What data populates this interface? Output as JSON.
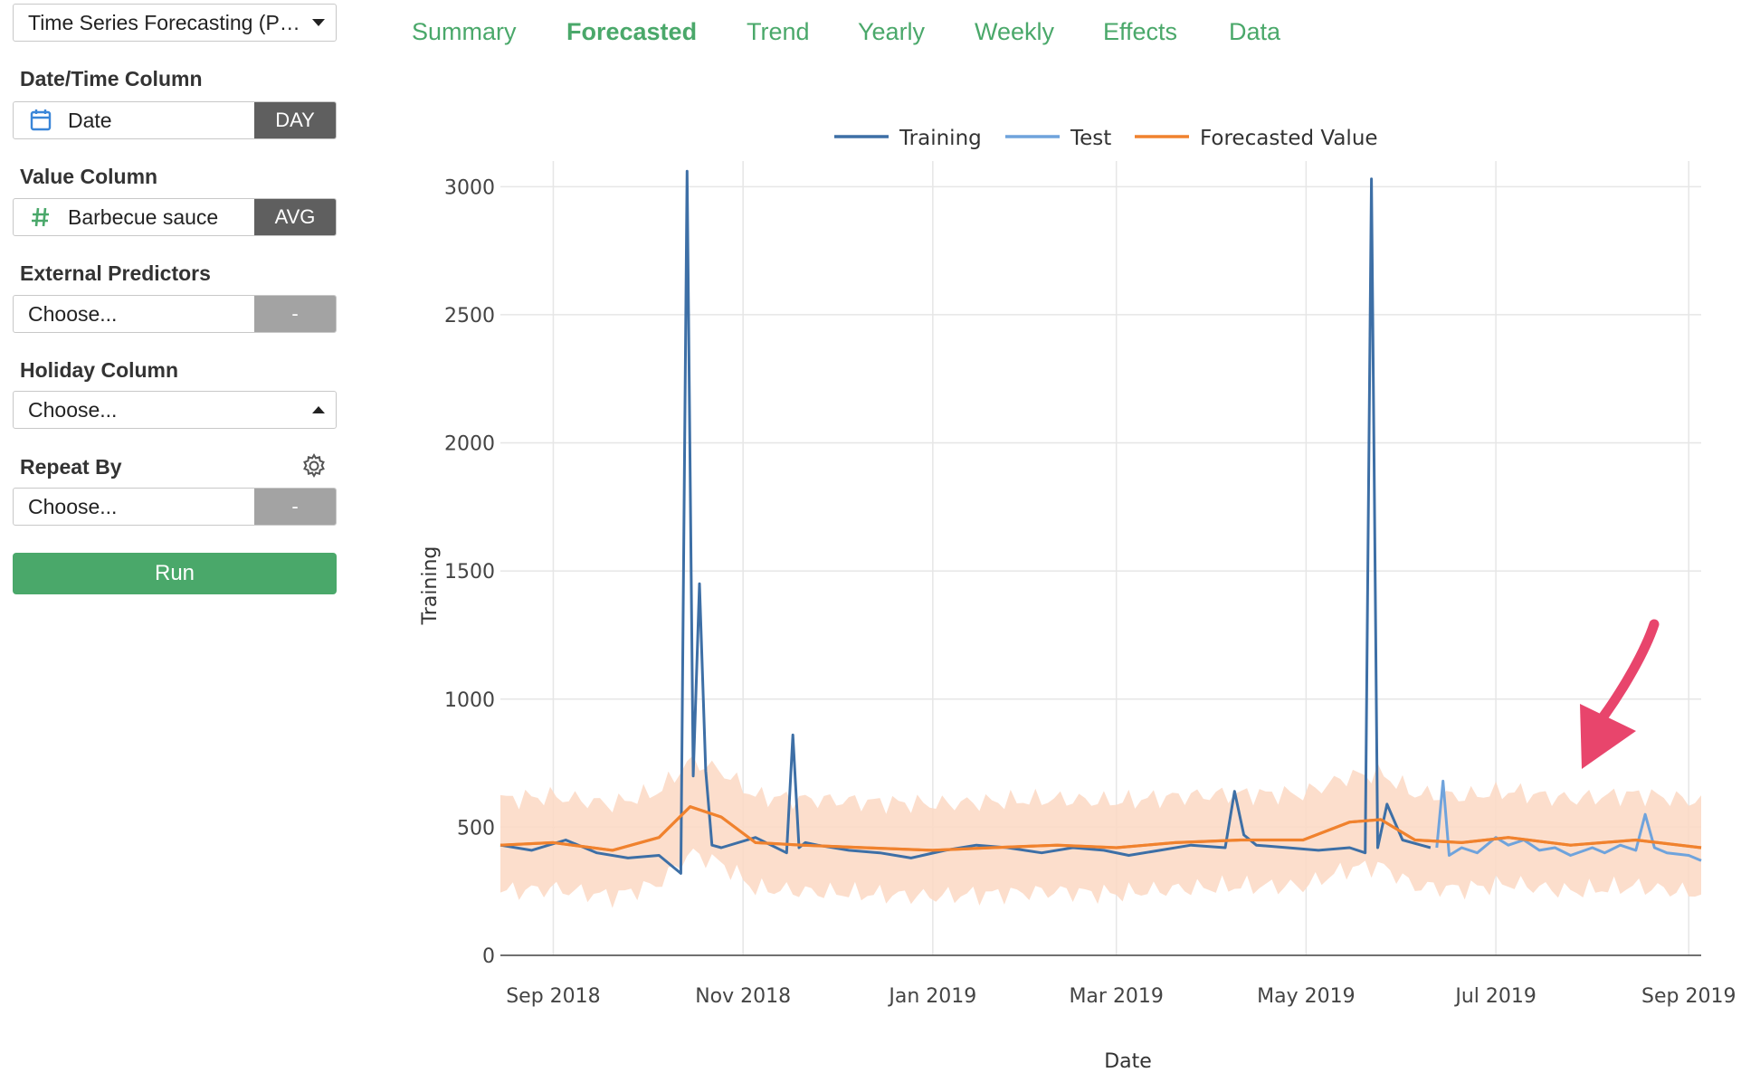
{
  "model_select": {
    "value": "Time Series Forecasting (P…"
  },
  "fields": {
    "datetime": {
      "label": "Date/Time Column",
      "value": "Date",
      "button": "DAY",
      "icon": "calendar-icon"
    },
    "value": {
      "label": "Value Column",
      "value": "Barbecue sauce",
      "button": "AVG",
      "icon": "hash-icon"
    },
    "external": {
      "label": "External Predictors",
      "placeholder": "Choose...",
      "button": "-"
    },
    "holiday": {
      "label": "Holiday Column",
      "placeholder": "Choose..."
    },
    "repeat": {
      "label": "Repeat By",
      "placeholder": "Choose...",
      "button": "-",
      "icon": "gear-icon"
    }
  },
  "run_button": {
    "label": "Run"
  },
  "tabs": [
    {
      "label": "Summary",
      "active": false
    },
    {
      "label": "Forecasted",
      "active": true
    },
    {
      "label": "Trend",
      "active": false
    },
    {
      "label": "Yearly",
      "active": false
    },
    {
      "label": "Weekly",
      "active": false
    },
    {
      "label": "Effects",
      "active": false
    },
    {
      "label": "Data",
      "active": false
    }
  ],
  "colors": {
    "accent": "#4aa86a",
    "training": "#3d6fa6",
    "test": "#6fa3dc",
    "forecast": "#f0822e",
    "band": "#fbd8c3",
    "arrow": "#e8456c"
  },
  "chart_data": {
    "type": "line",
    "xlabel": "Date",
    "ylabel": "Training",
    "ylim": [
      0,
      3100
    ],
    "xlim": [
      "2018-08-15",
      "2019-09-05"
    ],
    "x_ticks": [
      "Sep 2018",
      "Nov 2018",
      "Jan 2019",
      "Mar 2019",
      "May 2019",
      "Jul 2019",
      "Sep 2019"
    ],
    "y_ticks": [
      0,
      500,
      1000,
      1500,
      2000,
      2500,
      3000
    ],
    "legend": [
      "Training",
      "Test",
      "Forecasted Value"
    ],
    "legend_position": "top",
    "grid": true,
    "annotation": "arrow pointing at test period",
    "series": [
      {
        "name": "Training",
        "x": [
          "2018-08-15",
          "2018-08-25",
          "2018-09-05",
          "2018-09-15",
          "2018-09-25",
          "2018-10-05",
          "2018-10-12",
          "2018-10-14",
          "2018-10-16",
          "2018-10-18",
          "2018-10-20",
          "2018-10-22",
          "2018-10-25",
          "2018-11-05",
          "2018-11-15",
          "2018-11-17",
          "2018-11-19",
          "2018-11-21",
          "2018-11-25",
          "2018-12-05",
          "2018-12-15",
          "2018-12-25",
          "2019-01-05",
          "2019-01-15",
          "2019-01-25",
          "2019-02-05",
          "2019-02-15",
          "2019-02-25",
          "2019-03-05",
          "2019-03-15",
          "2019-03-25",
          "2019-04-05",
          "2019-04-08",
          "2019-04-11",
          "2019-04-15",
          "2019-04-25",
          "2019-05-05",
          "2019-05-15",
          "2019-05-20",
          "2019-05-22",
          "2019-05-24",
          "2019-05-27",
          "2019-06-01",
          "2019-06-07",
          "2019-06-10"
        ],
        "y": [
          430,
          410,
          450,
          400,
          380,
          390,
          320,
          3060,
          700,
          1450,
          720,
          430,
          420,
          460,
          400,
          860,
          420,
          440,
          430,
          410,
          400,
          380,
          410,
          430,
          420,
          400,
          420,
          410,
          390,
          410,
          430,
          420,
          640,
          470,
          430,
          420,
          410,
          420,
          400,
          3030,
          420,
          590,
          450,
          430,
          420
        ]
      },
      {
        "name": "Test",
        "x": [
          "2019-06-12",
          "2019-06-14",
          "2019-06-16",
          "2019-06-20",
          "2019-06-25",
          "2019-07-01",
          "2019-07-05",
          "2019-07-10",
          "2019-07-15",
          "2019-07-20",
          "2019-07-25",
          "2019-08-01",
          "2019-08-05",
          "2019-08-10",
          "2019-08-15",
          "2019-08-18",
          "2019-08-21",
          "2019-08-25",
          "2019-09-01",
          "2019-09-05"
        ],
        "y": [
          420,
          680,
          390,
          420,
          400,
          460,
          430,
          450,
          410,
          420,
          390,
          420,
          400,
          430,
          410,
          550,
          420,
          400,
          390,
          370
        ]
      },
      {
        "name": "Forecasted Value",
        "x": [
          "2018-08-15",
          "2018-09-01",
          "2018-09-20",
          "2018-10-05",
          "2018-10-15",
          "2018-10-25",
          "2018-11-05",
          "2018-11-20",
          "2018-12-10",
          "2019-01-01",
          "2019-01-20",
          "2019-02-10",
          "2019-03-01",
          "2019-03-20",
          "2019-04-10",
          "2019-04-30",
          "2019-05-15",
          "2019-05-25",
          "2019-06-05",
          "2019-06-20",
          "2019-07-05",
          "2019-07-25",
          "2019-08-15",
          "2019-09-05"
        ],
        "y": [
          430,
          440,
          410,
          460,
          580,
          540,
          440,
          430,
          420,
          410,
          420,
          430,
          420,
          440,
          450,
          450,
          520,
          530,
          450,
          440,
          460,
          430,
          450,
          420
        ]
      }
    ],
    "band": {
      "name": "Forecasted Value (interval)",
      "x": [
        "2018-08-15",
        "2018-09-01",
        "2018-09-20",
        "2018-10-05",
        "2018-10-15",
        "2018-10-25",
        "2018-11-05",
        "2018-11-20",
        "2018-12-10",
        "2019-01-01",
        "2019-01-20",
        "2019-02-10",
        "2019-03-01",
        "2019-03-20",
        "2019-04-10",
        "2019-04-30",
        "2019-05-15",
        "2019-05-25",
        "2019-06-05",
        "2019-06-20",
        "2019-07-05",
        "2019-07-25",
        "2019-08-15",
        "2019-09-05"
      ],
      "lower": [
        250,
        260,
        230,
        280,
        400,
        360,
        260,
        250,
        240,
        230,
        240,
        250,
        240,
        260,
        270,
        270,
        340,
        350,
        270,
        260,
        280,
        250,
        270,
        240
      ],
      "upper": [
        610,
        620,
        590,
        640,
        760,
        720,
        620,
        610,
        600,
        590,
        600,
        610,
        600,
        620,
        630,
        630,
        700,
        710,
        630,
        620,
        640,
        610,
        630,
        600
      ]
    }
  }
}
